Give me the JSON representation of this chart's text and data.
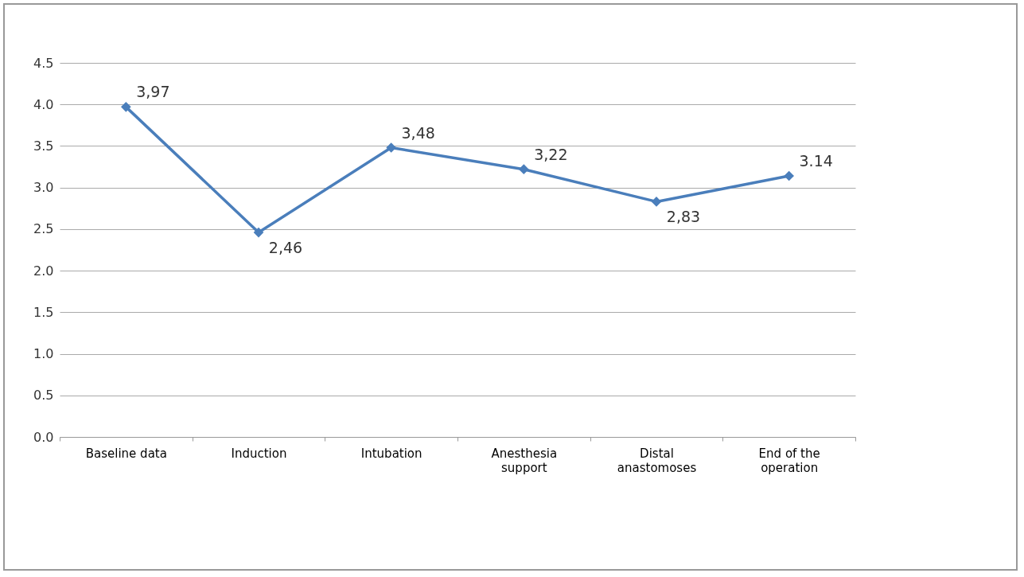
{
  "chart_data": {
    "type": "line",
    "categories": [
      "Baseline data",
      "Induction",
      "Intubation",
      "Anesthesia support",
      "Distal anastomoses",
      "End of the operation"
    ],
    "series": [
      {
        "color": "#4a7ebb",
        "values": [
          3.97,
          2.46,
          3.48,
          3.22,
          2.83,
          3.14
        ],
        "value_labels": [
          "3,97",
          "2,46",
          "3,48",
          "3,22",
          "2,83",
          "3.14"
        ]
      }
    ],
    "ylim": [
      0,
      4.5
    ],
    "yticks": [
      {
        "value": 0,
        "label": "0.0"
      },
      0.5,
      {
        "value": 1,
        "label": "1.0"
      },
      1.5,
      {
        "value": 2,
        "label": "2.0"
      },
      2.5,
      {
        "value": 3,
        "label": "3.0"
      },
      3.5,
      {
        "value": 4,
        "label": "4.0"
      },
      4.5
    ],
    "grid": "y",
    "marker": "diamond",
    "line_style": "solid"
  }
}
